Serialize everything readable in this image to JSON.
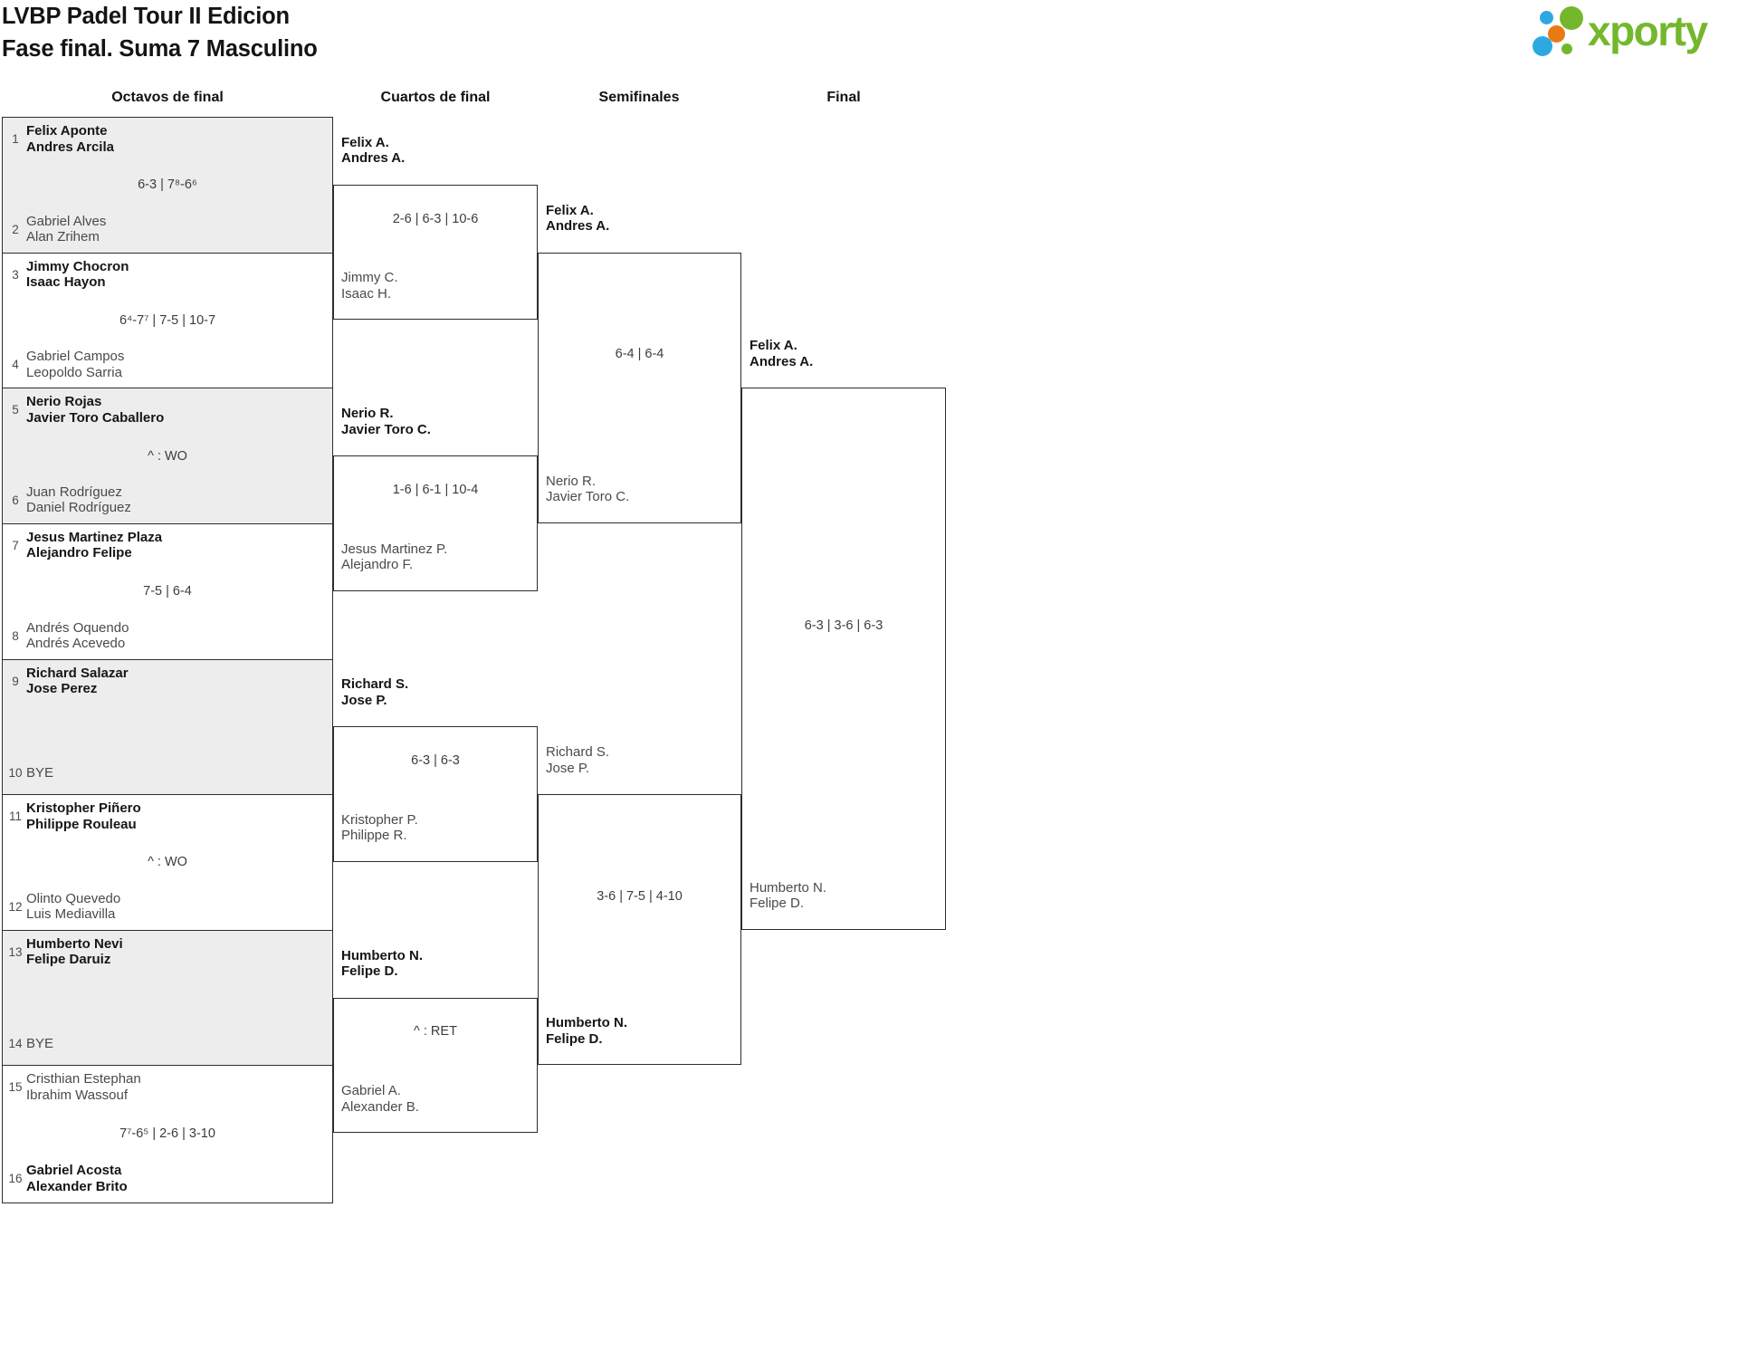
{
  "title": {
    "line1": "LVBP Padel Tour II Edicion",
    "line2": "Fase final. Suma 7 Masculino"
  },
  "logo": {
    "brand": "xporty",
    "colors": {
      "green": "#74b72d",
      "blue": "#2da9e1",
      "orange": "#e87913"
    }
  },
  "round_headers": [
    "Octavos de final",
    "Cuartos de final",
    "Semifinales",
    "Final"
  ],
  "colors": {
    "border": "#2d2d2d",
    "match_alt_background": "#ededed",
    "winner_text": "#161616",
    "loser_text": "#4a4a4a",
    "score_text": "#3c3c3c"
  },
  "bracket": {
    "octavos": [
      {
        "seed1": "1",
        "team1": [
          "Felix Aponte",
          "Andres Arcila"
        ],
        "seed2": "2",
        "team2": [
          "Gabriel Alves",
          "Alan Zrihem"
        ],
        "winner": "team1",
        "score": "6-3 | 7⁸-6⁶"
      },
      {
        "seed1": "3",
        "team1": [
          "Jimmy Chocron",
          "Isaac Hayon"
        ],
        "seed2": "4",
        "team2": [
          "Gabriel Campos",
          "Leopoldo Sarria"
        ],
        "winner": "team1",
        "score": "6⁴-7⁷ | 7-5 | 10-7"
      },
      {
        "seed1": "5",
        "team1": [
          "Nerio Rojas",
          "Javier Toro Caballero"
        ],
        "seed2": "6",
        "team2": [
          "Juan Rodríguez",
          "Daniel Rodríguez"
        ],
        "winner": "team1",
        "score": "^ : WO"
      },
      {
        "seed1": "7",
        "team1": [
          "Jesus Martinez Plaza",
          "Alejandro Felipe"
        ],
        "seed2": "8",
        "team2": [
          "Andrés Oquendo",
          "Andrés Acevedo"
        ],
        "winner": "team1",
        "score": "7-5 | 6-4"
      },
      {
        "seed1": "9",
        "team1": [
          "Richard Salazar",
          "Jose Perez"
        ],
        "seed2": "10",
        "team2": [
          "BYE"
        ],
        "bye": true,
        "winner": "team1",
        "score": ""
      },
      {
        "seed1": "11",
        "team1": [
          "Kristopher Piñero",
          "Philippe Rouleau"
        ],
        "seed2": "12",
        "team2": [
          "Olinto Quevedo",
          "Luis Mediavilla"
        ],
        "winner": "team1",
        "score": "^ : WO"
      },
      {
        "seed1": "13",
        "team1": [
          "Humberto Nevi",
          "Felipe Daruiz"
        ],
        "seed2": "14",
        "team2": [
          "BYE"
        ],
        "bye": true,
        "winner": "team1",
        "score": ""
      },
      {
        "seed1": "15",
        "team1": [
          "Cristhian Estephan",
          "Ibrahim Wassouf"
        ],
        "seed2": "16",
        "team2": [
          "Gabriel Acosta",
          "Alexander Brito"
        ],
        "winner": "team2",
        "score": "7⁷-6⁵ | 2-6 | 3-10"
      }
    ],
    "cuartos": [
      {
        "top": [
          "Felix A.",
          "Andres A."
        ],
        "bottom": [
          "Jimmy C.",
          "Isaac H."
        ],
        "winner": "top",
        "score": "2-6 | 6-3 | 10-6"
      },
      {
        "top": [
          "Nerio R.",
          "Javier Toro C."
        ],
        "bottom": [
          "Jesus Martinez P.",
          "Alejandro F."
        ],
        "winner": "top",
        "score": "1-6 | 6-1 | 10-4"
      },
      {
        "top": [
          "Richard S.",
          "Jose P."
        ],
        "bottom": [
          "Kristopher P.",
          "Philippe R."
        ],
        "winner": "top",
        "score": "6-3 | 6-3"
      },
      {
        "top": [
          "Humberto N.",
          "Felipe D."
        ],
        "bottom": [
          "Gabriel A.",
          "Alexander B."
        ],
        "winner": "top",
        "score": "^ : RET"
      }
    ],
    "semifinales": [
      {
        "top": [
          "Felix A.",
          "Andres A."
        ],
        "bottom": [
          "Nerio R.",
          "Javier Toro C."
        ],
        "winner": "top",
        "score": "6-4 | 6-4"
      },
      {
        "top": [
          "Richard S.",
          "Jose P."
        ],
        "bottom": [
          "Humberto N.",
          "Felipe D."
        ],
        "winner": "bottom",
        "score": "3-6 | 7-5 | 4-10"
      }
    ],
    "final": [
      {
        "top": [
          "Felix A.",
          "Andres A."
        ],
        "bottom": [
          "Humberto N.",
          "Felipe D."
        ],
        "winner": "top",
        "score": "6-3 | 3-6 | 6-3"
      }
    ]
  }
}
